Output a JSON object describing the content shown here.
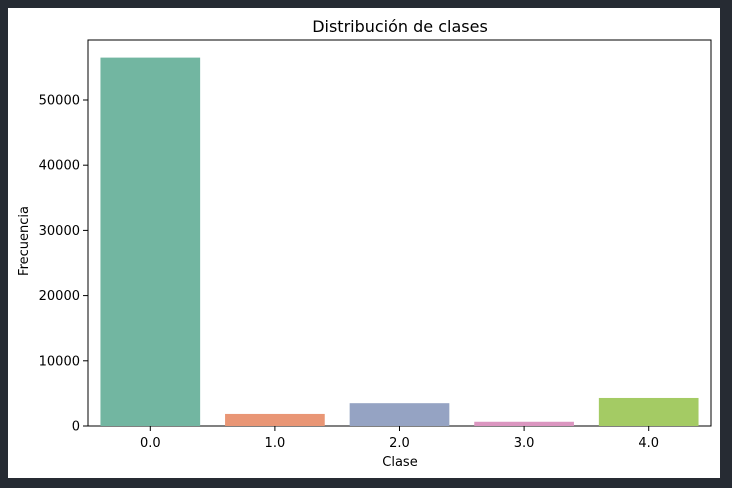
{
  "colors": {
    "page_background": "#262b33",
    "figure_background": "#ffffff",
    "bar_colors": [
      "#72b6a1",
      "#e99675",
      "#95a3c3",
      "#db96c0",
      "#a4cb64"
    ]
  },
  "chart_data": {
    "type": "bar",
    "title": "Distribución de clases",
    "xlabel": "Clase",
    "ylabel": "Frecuencia",
    "categories": [
      "0.0",
      "1.0",
      "2.0",
      "3.0",
      "4.0"
    ],
    "values": [
      56500,
      1850,
      3500,
      650,
      4300
    ],
    "ylim": [
      0,
      59200
    ],
    "yticks": [
      0,
      10000,
      20000,
      30000,
      40000,
      50000
    ],
    "ytick_labels": [
      "0",
      "10000",
      "20000",
      "30000",
      "40000",
      "50000"
    ],
    "grid": false,
    "legend": false
  }
}
